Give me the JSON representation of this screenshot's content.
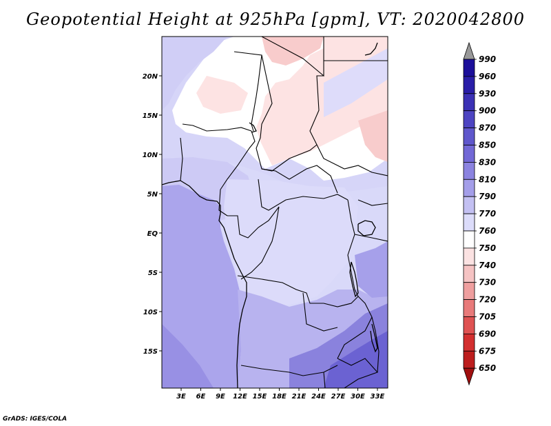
{
  "title": "Geopotential Height at 925hPa [gpm], VT: 2020042800",
  "credit": "GrADS: IGES/COLA",
  "map": {
    "lat_labels": [
      "20N",
      "15N",
      "10N",
      "5N",
      "EQ",
      "5S",
      "10S",
      "15S"
    ],
    "lon_labels": [
      "3E",
      "6E",
      "9E",
      "12E",
      "15E",
      "18E",
      "21E",
      "24E",
      "27E",
      "30E",
      "33E"
    ]
  },
  "colorbar": {
    "levels": [
      "990",
      "960",
      "930",
      "900",
      "870",
      "850",
      "830",
      "810",
      "790",
      "770",
      "760",
      "750",
      "740",
      "730",
      "720",
      "705",
      "690",
      "675",
      "650"
    ],
    "colors": [
      "#999999",
      "#1c0f9a",
      "#2a1ea8",
      "#3b31b5",
      "#4d44c2",
      "#5f57cc",
      "#7268d6",
      "#8b83e0",
      "#a49ee9",
      "#c3c0f2",
      "#dcdcfa",
      "#ffffff",
      "#fbe2e2",
      "#f5c3c3",
      "#ef9f9f",
      "#e87a7a",
      "#df5252",
      "#d32f2f",
      "#bd1e1e",
      "#a00f0f"
    ]
  },
  "field_colors": {
    "sea_deep": "#8f86df",
    "sea_mid": "#a9a2ea",
    "sea_light": "#b6b1ef",
    "land_light": "#d9d9f9",
    "land_lilac": "#c8c5f4",
    "white": "#ffffff",
    "pink": "#fde3e3",
    "pink_deep": "#f8cccc",
    "southeast": "#7f78dd",
    "southeast_deep": "#6b62d2"
  }
}
